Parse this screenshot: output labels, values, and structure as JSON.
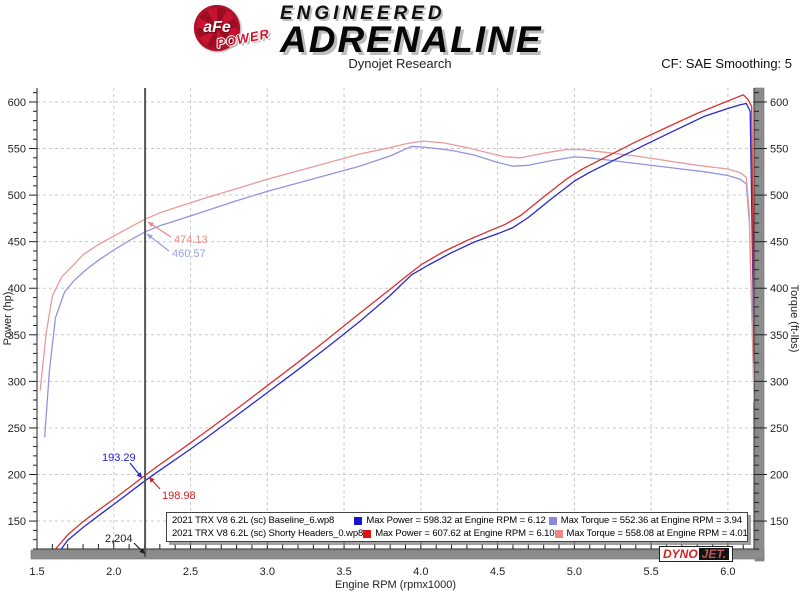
{
  "header": {
    "logo_afe": "aFe",
    "logo_power": "POWER",
    "brand_line1": "ENGINEERED",
    "brand_line2": "ADRENALINE",
    "subtitle": "Dynojet Research",
    "smoothing": "CF: SAE Smoothing: 5"
  },
  "dynojet_logo": {
    "dyno": "DYNO",
    "jet": "JET."
  },
  "chart_data": {
    "type": "line",
    "title": "Dynojet Research",
    "xlabel": "Engine RPM (rpmx1000)",
    "ylabel_left": "Power (hp)",
    "ylabel_right": "Torque (ft-lbs)",
    "xlim": [
      1.5,
      6.17
    ],
    "ylim": [
      120,
      615
    ],
    "x_major_ticks": [
      1.5,
      2.0,
      2.5,
      3.0,
      3.5,
      4.0,
      4.5,
      5.0,
      5.5,
      6.0
    ],
    "x_minor_step": 0.1,
    "y_major_ticks": [
      150,
      200,
      250,
      300,
      350,
      400,
      450,
      500,
      550,
      600
    ],
    "y_minor_step": 10,
    "grid": true,
    "colors": {
      "grid": "#c9c9c9",
      "axis": "#222222",
      "axis_bar": "#8c8c8c",
      "axis_bar_edge": "#707070",
      "cursor": "#555555"
    },
    "cursor": {
      "rpm": 2.204,
      "label": "2,204"
    },
    "series": [
      {
        "name": "torque-baseline",
        "color": "#9494de",
        "points": [
          [
            1.55,
            240
          ],
          [
            1.58,
            310
          ],
          [
            1.62,
            368
          ],
          [
            1.68,
            396
          ],
          [
            1.74,
            408
          ],
          [
            1.82,
            420
          ],
          [
            1.9,
            430
          ],
          [
            2.0,
            441
          ],
          [
            2.1,
            451
          ],
          [
            2.204,
            460.57
          ],
          [
            2.3,
            467
          ],
          [
            2.45,
            475
          ],
          [
            2.6,
            483
          ],
          [
            2.8,
            494
          ],
          [
            3.0,
            504
          ],
          [
            3.2,
            513
          ],
          [
            3.4,
            522
          ],
          [
            3.6,
            531
          ],
          [
            3.8,
            542
          ],
          [
            3.94,
            552.36
          ],
          [
            4.05,
            551
          ],
          [
            4.2,
            548
          ],
          [
            4.35,
            543
          ],
          [
            4.5,
            535
          ],
          [
            4.6,
            531
          ],
          [
            4.7,
            532
          ],
          [
            4.85,
            537
          ],
          [
            5.0,
            541
          ],
          [
            5.1,
            540
          ],
          [
            5.25,
            537
          ],
          [
            5.45,
            533
          ],
          [
            5.65,
            529
          ],
          [
            5.85,
            525
          ],
          [
            6.0,
            521
          ],
          [
            6.08,
            517
          ],
          [
            6.12,
            512
          ],
          [
            6.14,
            470
          ],
          [
            6.17,
            285
          ]
        ]
      },
      {
        "name": "torque-shorty-headers",
        "color": "#eb9a9a",
        "points": [
          [
            1.52,
            290
          ],
          [
            1.56,
            352
          ],
          [
            1.6,
            392
          ],
          [
            1.66,
            412
          ],
          [
            1.72,
            422
          ],
          [
            1.8,
            436
          ],
          [
            1.9,
            447
          ],
          [
            2.0,
            456
          ],
          [
            2.1,
            465
          ],
          [
            2.204,
            474.13
          ],
          [
            2.3,
            481
          ],
          [
            2.45,
            489
          ],
          [
            2.6,
            497
          ],
          [
            2.8,
            507
          ],
          [
            3.0,
            517
          ],
          [
            3.2,
            526
          ],
          [
            3.4,
            535
          ],
          [
            3.6,
            544
          ],
          [
            3.8,
            551
          ],
          [
            3.9,
            555
          ],
          [
            4.01,
            558.08
          ],
          [
            4.15,
            556
          ],
          [
            4.3,
            551
          ],
          [
            4.45,
            545
          ],
          [
            4.55,
            541
          ],
          [
            4.65,
            540
          ],
          [
            4.8,
            545
          ],
          [
            4.95,
            549
          ],
          [
            5.05,
            549
          ],
          [
            5.2,
            546
          ],
          [
            5.4,
            542
          ],
          [
            5.6,
            537
          ],
          [
            5.8,
            532
          ],
          [
            6.0,
            528
          ],
          [
            6.08,
            524
          ],
          [
            6.12,
            519
          ],
          [
            6.14,
            480
          ],
          [
            6.17,
            278
          ]
        ]
      },
      {
        "name": "power-baseline",
        "color": "#2828cc",
        "points": [
          [
            1.6,
            107
          ],
          [
            1.7,
            129.5
          ],
          [
            1.8,
            143.2
          ],
          [
            1.9,
            155.6
          ],
          [
            2.0,
            167.9
          ],
          [
            2.1,
            180.3
          ],
          [
            2.204,
            193.29
          ],
          [
            2.3,
            204.5
          ],
          [
            2.45,
            221.6
          ],
          [
            2.6,
            239.1
          ],
          [
            2.8,
            263.3
          ],
          [
            3.0,
            287.9
          ],
          [
            3.2,
            312.5
          ],
          [
            3.4,
            337.9
          ],
          [
            3.6,
            364.0
          ],
          [
            3.8,
            392.2
          ],
          [
            3.94,
            414.4
          ],
          [
            4.05,
            424.9
          ],
          [
            4.2,
            438.2
          ],
          [
            4.35,
            449.8
          ],
          [
            4.5,
            458.4
          ],
          [
            4.6,
            465.1
          ],
          [
            4.7,
            476.0
          ],
          [
            4.85,
            495.9
          ],
          [
            5.0,
            515.0
          ],
          [
            5.1,
            524.5
          ],
          [
            5.25,
            536.8
          ],
          [
            5.45,
            553.1
          ],
          [
            5.65,
            569.1
          ],
          [
            5.85,
            584.8
          ],
          [
            6.0,
            593.0
          ],
          [
            6.08,
            597.0
          ],
          [
            6.12,
            598.32
          ],
          [
            6.145,
            590
          ],
          [
            6.17,
            330
          ]
        ]
      },
      {
        "name": "power-shorty-headers",
        "color": "#d83030",
        "points": [
          [
            1.58,
            112
          ],
          [
            1.7,
            135.3
          ],
          [
            1.8,
            149.4
          ],
          [
            1.9,
            161.7
          ],
          [
            2.0,
            173.6
          ],
          [
            2.1,
            185.9
          ],
          [
            2.204,
            198.98
          ],
          [
            2.3,
            210.6
          ],
          [
            2.45,
            228.1
          ],
          [
            2.6,
            246.1
          ],
          [
            2.8,
            270.3
          ],
          [
            3.0,
            295.3
          ],
          [
            3.2,
            320.5
          ],
          [
            3.4,
            346.4
          ],
          [
            3.6,
            372.9
          ],
          [
            3.8,
            398.8
          ],
          [
            3.9,
            412.2
          ],
          [
            4.01,
            426.1
          ],
          [
            4.15,
            439.4
          ],
          [
            4.3,
            451.2
          ],
          [
            4.45,
            461.8
          ],
          [
            4.55,
            468.7
          ],
          [
            4.65,
            478.1
          ],
          [
            4.8,
            498.1
          ],
          [
            4.95,
            517.4
          ],
          [
            5.05,
            527.8
          ],
          [
            5.2,
            540.5
          ],
          [
            5.4,
            557.2
          ],
          [
            5.6,
            572.6
          ],
          [
            5.8,
            587.7
          ],
          [
            6.0,
            601.0
          ],
          [
            6.05,
            604.5
          ],
          [
            6.1,
            607.62
          ],
          [
            6.13,
            603.0
          ],
          [
            6.155,
            595
          ],
          [
            6.17,
            320
          ]
        ]
      }
    ],
    "annotations": [
      {
        "text": "474.13",
        "color": "#e88a8a",
        "lx": 174,
        "ly": 243,
        "ax": 171,
        "ay": 237,
        "tx": 148,
        "ty": 222
      },
      {
        "text": "460.57",
        "color": "#9a9fdd",
        "lx": 172,
        "ly": 257,
        "ax": 169,
        "ay": 251,
        "tx": 147,
        "ty": 234
      },
      {
        "text": "193.29",
        "color": "#2222cc",
        "lx": 102,
        "ly": 461,
        "ax": 130,
        "ay": 463,
        "tx": 142,
        "ty": 478
      },
      {
        "text": "198.98",
        "color": "#d42020",
        "lx": 162,
        "ly": 499,
        "ax": 160,
        "ay": 489,
        "tx": 149,
        "ty": 477
      },
      {
        "text": "2,204",
        "color": "#222222",
        "lx": 105,
        "ly": 542,
        "ax": 134,
        "ay": 543,
        "tx": 145,
        "ty": 554
      }
    ],
    "legend": {
      "rows": [
        {
          "file": "2021 TRX V8 6.2L (sc) Baseline_6.wp8",
          "power_color": "#1515cc",
          "power_label": "Max Power = 598.32 at Engine RPM = 6.12",
          "torque_color": "#8888dd",
          "torque_label": "Max Torque = 552.36 at Engine RPM = 3.94"
        },
        {
          "file": "2021 TRX V8 6.2L (sc) Shorty Headers_0.wp8",
          "power_color": "#dd1515",
          "power_label": "Max Power = 607.62 at Engine RPM = 6.10",
          "torque_color": "#ee8888",
          "torque_label": "Max Torque = 558.08 at Engine RPM = 4.01"
        }
      ]
    }
  }
}
